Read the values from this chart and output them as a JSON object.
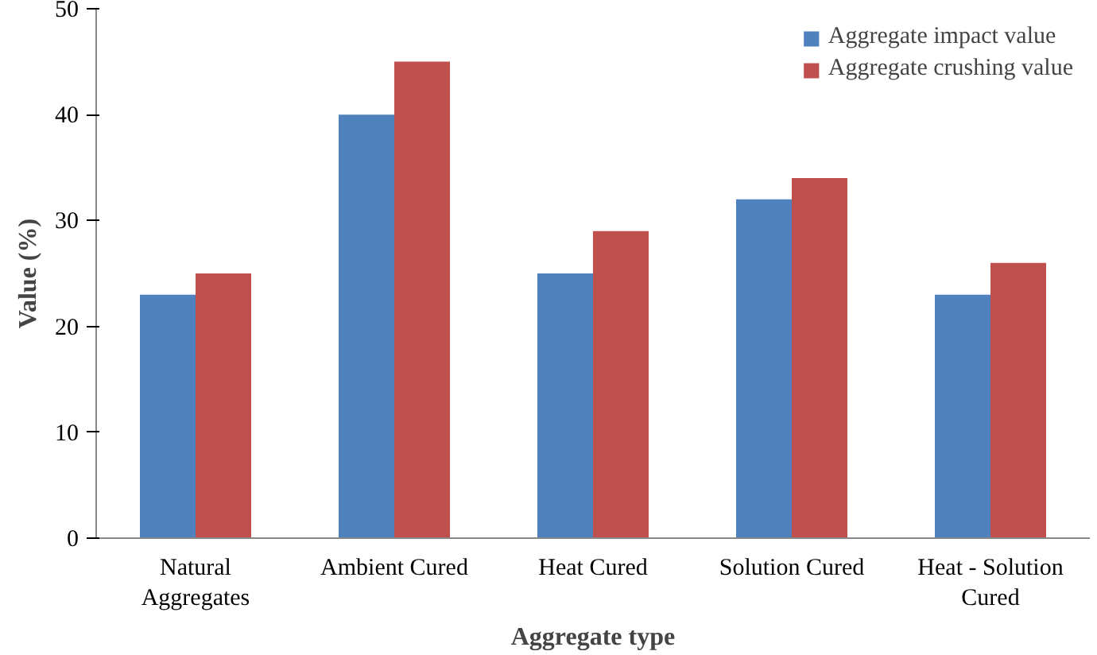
{
  "chart_data": {
    "type": "bar",
    "xlabel": "Aggregate type",
    "ylabel": "Value (%)",
    "categories": [
      "Natural Aggregates",
      "Ambient Cured",
      "Heat Cured",
      "Solution Cured",
      "Heat - Solution Cured"
    ],
    "series": [
      {
        "name": "Aggregate impact value",
        "color": "#4f81bd",
        "values": [
          23,
          40,
          25,
          32,
          23
        ]
      },
      {
        "name": "Aggregate crushing value",
        "color": "#c0504d",
        "values": [
          25,
          45,
          29,
          34,
          26
        ]
      }
    ],
    "ylim": [
      0,
      50
    ],
    "yticks": [
      0,
      10,
      20,
      30,
      40,
      50
    ],
    "grid": false,
    "legend": "top right"
  }
}
